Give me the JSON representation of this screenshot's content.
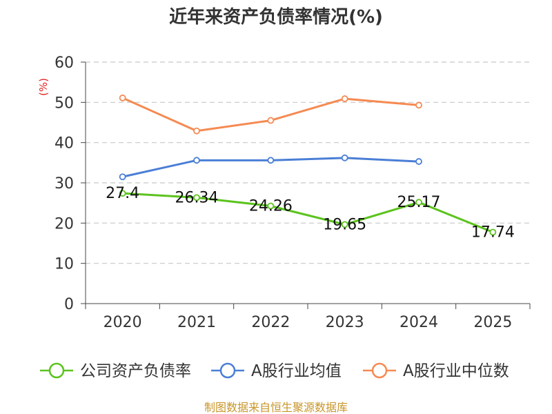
{
  "chart_data": {
    "type": "line",
    "title": "近年来资产负债率情况(%)",
    "ylabel": "(%)",
    "xlabel": "",
    "categories": [
      "2020",
      "2021",
      "2022",
      "2023",
      "2024",
      "2025"
    ],
    "ylim": [
      0,
      60
    ],
    "yticks": [
      "0",
      "10",
      "20",
      "30",
      "40",
      "50",
      "60"
    ],
    "grid": true,
    "legend_position": "bottom",
    "series": [
      {
        "name": "公司资产负债率",
        "color": "#5bc31d",
        "values": [
          27.4,
          26.34,
          24.26,
          19.65,
          25.17,
          17.74
        ],
        "labels": [
          "27.4",
          "26.34",
          "24.26",
          "19.65",
          "25.17",
          "17.74"
        ]
      },
      {
        "name": "A股行业均值",
        "color": "#4a7ed6",
        "values": [
          31.5,
          35.6,
          35.6,
          36.2,
          35.3,
          null
        ]
      },
      {
        "name": "A股行业中位数",
        "color": "#f58a52",
        "values": [
          51.1,
          42.9,
          45.5,
          50.9,
          49.3,
          null
        ]
      }
    ],
    "source": "制图数据来自恒生聚源数据库"
  }
}
